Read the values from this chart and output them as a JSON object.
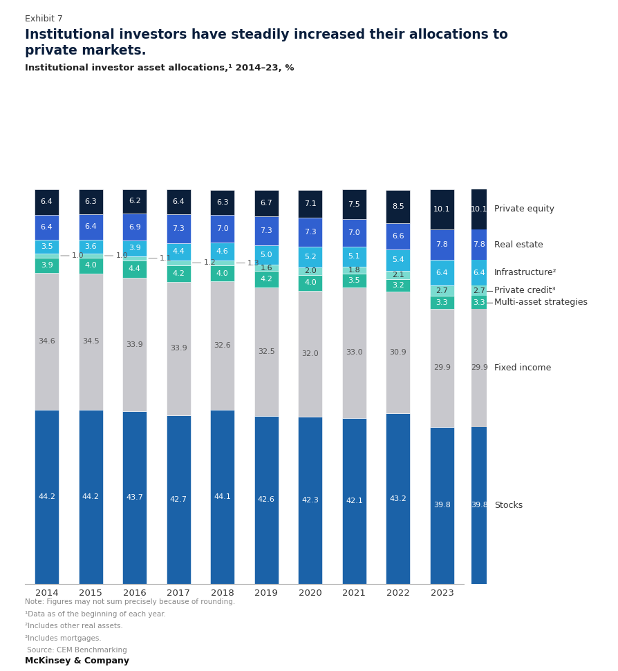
{
  "years": [
    "2014",
    "2015",
    "2016",
    "2017",
    "2018",
    "2019",
    "2020",
    "2021",
    "2022",
    "2023"
  ],
  "segments": {
    "stocks": [
      44.2,
      44.2,
      43.7,
      42.7,
      44.1,
      42.6,
      42.3,
      42.1,
      43.2,
      39.8
    ],
    "fixed_income": [
      34.6,
      34.5,
      33.9,
      33.9,
      32.6,
      32.5,
      32.0,
      33.0,
      30.9,
      29.9
    ],
    "multi_asset": [
      3.9,
      4.0,
      4.4,
      4.2,
      4.0,
      4.2,
      4.0,
      3.5,
      3.2,
      3.3
    ],
    "private_credit": [
      1.0,
      1.0,
      1.1,
      1.2,
      1.3,
      1.6,
      2.0,
      1.8,
      2.1,
      2.7
    ],
    "infrastructure": [
      3.5,
      3.6,
      3.9,
      4.4,
      4.6,
      5.0,
      5.2,
      5.1,
      5.4,
      6.4
    ],
    "real_estate": [
      6.4,
      6.4,
      6.9,
      7.3,
      7.0,
      7.3,
      7.3,
      7.0,
      6.6,
      7.8
    ],
    "private_equity": [
      6.4,
      6.3,
      6.2,
      6.4,
      6.3,
      6.7,
      7.1,
      7.5,
      8.5,
      10.1
    ]
  },
  "colors": {
    "stocks": "#1b62a8",
    "fixed_income": "#c8c8cd",
    "multi_asset": "#28b89e",
    "private_credit": "#7adbd0",
    "infrastructure": "#2bb5e0",
    "real_estate": "#3060d0",
    "private_equity": "#0b1f3a"
  },
  "text_colors": {
    "stocks": "white",
    "fixed_income": "#555555",
    "multi_asset": "white",
    "private_credit": "#333333",
    "infrastructure": "white",
    "real_estate": "white",
    "private_equity": "white"
  },
  "legend_labels": {
    "private_equity": "Private equity",
    "real_estate": "Real estate",
    "infrastructure": "Infrastructure²",
    "private_credit": "Private credit³",
    "multi_asset": "Multi-asset strategies",
    "fixed_income": "Fixed income",
    "stocks": "Stocks"
  },
  "segment_order": [
    "stocks",
    "fixed_income",
    "multi_asset",
    "private_credit",
    "infrastructure",
    "real_estate",
    "private_equity"
  ],
  "exhibit_label": "Exhibit 7",
  "title_line1": "Institutional investors have steadily increased their allocations to",
  "title_line2": "private markets.",
  "subtitle": "Institutional investor asset allocations,¹ 2014–23, %",
  "footnotes": [
    "Note: Figures may not sum precisely because of rounding.",
    "¹Data as of the beginning of each year.",
    "²Includes other real assets.",
    "³Includes mortgages.",
    " Source: CEM Benchmarking"
  ],
  "mckinsey_label": "McKinsey & Company",
  "bar_width": 0.55,
  "figsize": [
    8.95,
    9.71
  ],
  "dpi": 100,
  "private_credit_outside_years": [
    0,
    1,
    2,
    3,
    4
  ],
  "private_credit_outside_vals": [
    1.0,
    1.0,
    1.1,
    1.2,
    1.3
  ]
}
